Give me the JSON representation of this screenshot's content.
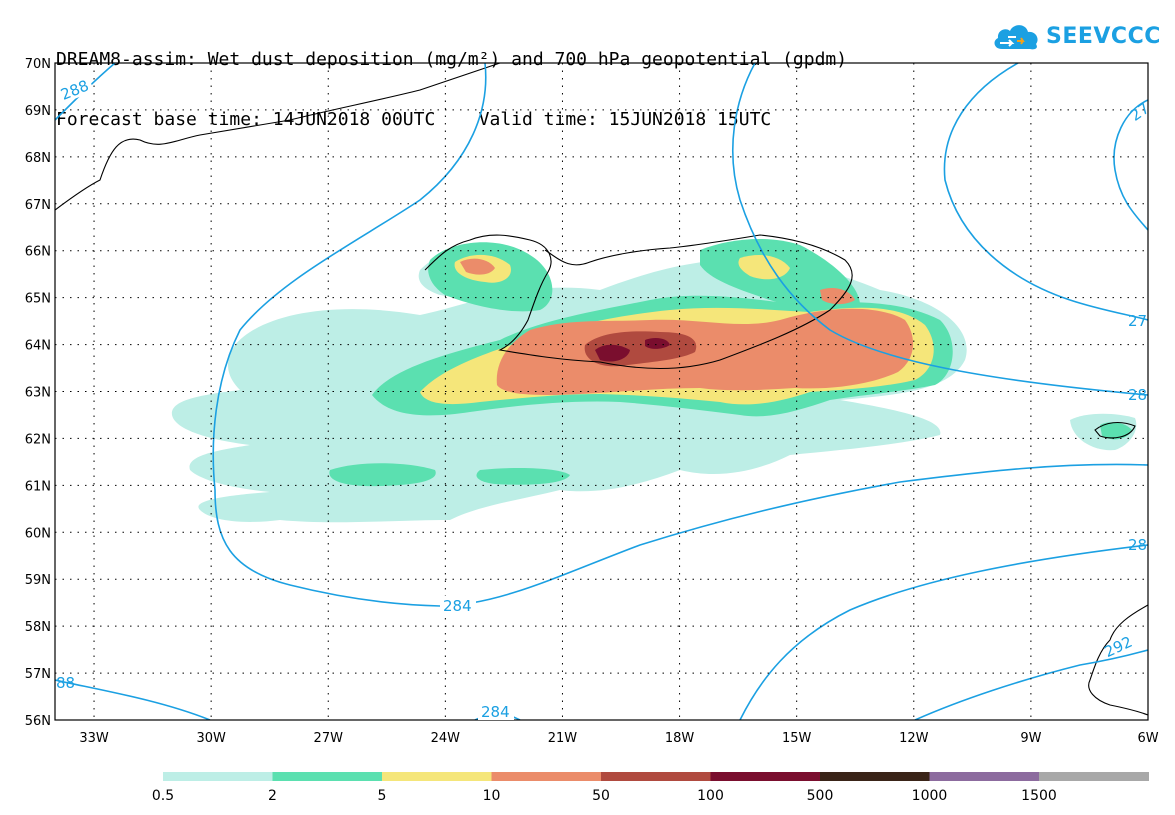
{
  "header": {
    "title_line1": "DREAM8-assim: Wet dust deposition (mg/m²) and 700 hPa geopotential (gpdm)",
    "title_line2": "Forecast base time: 14JUN2018 00UTC    Valid time: 15JUN2018 15UTC"
  },
  "logo": {
    "text": "SEEVCCC",
    "icon": "cloud-icon",
    "color": "#1ba0e2"
  },
  "map": {
    "lon_range": [
      -34,
      -6
    ],
    "lat_range": [
      56,
      70
    ],
    "lat_ticks": [
      "56N",
      "57N",
      "58N",
      "59N",
      "60N",
      "61N",
      "62N",
      "63N",
      "64N",
      "65N",
      "66N",
      "67N",
      "68N",
      "69N",
      "70N"
    ],
    "lon_ticks": [
      "33W",
      "30W",
      "27W",
      "24W",
      "21W",
      "18W",
      "15W",
      "12W",
      "9W",
      "6W"
    ],
    "grid": "dotted",
    "contour_color": "#1ba0e2",
    "contour_labels": [
      "288",
      "284",
      "284",
      "27",
      "27",
      "28",
      "28",
      "292",
      "88"
    ]
  },
  "legend": {
    "colors": [
      "#bdeee6",
      "#5be0b0",
      "#f5e67a",
      "#eb8c6a",
      "#b04a3f",
      "#7a0e2e",
      "#3a2418",
      "#8c6b9e",
      "#a8a8a8"
    ],
    "labels": [
      "0.5",
      "2",
      "5",
      "10",
      "50",
      "100",
      "500",
      "1000",
      "1500"
    ]
  }
}
